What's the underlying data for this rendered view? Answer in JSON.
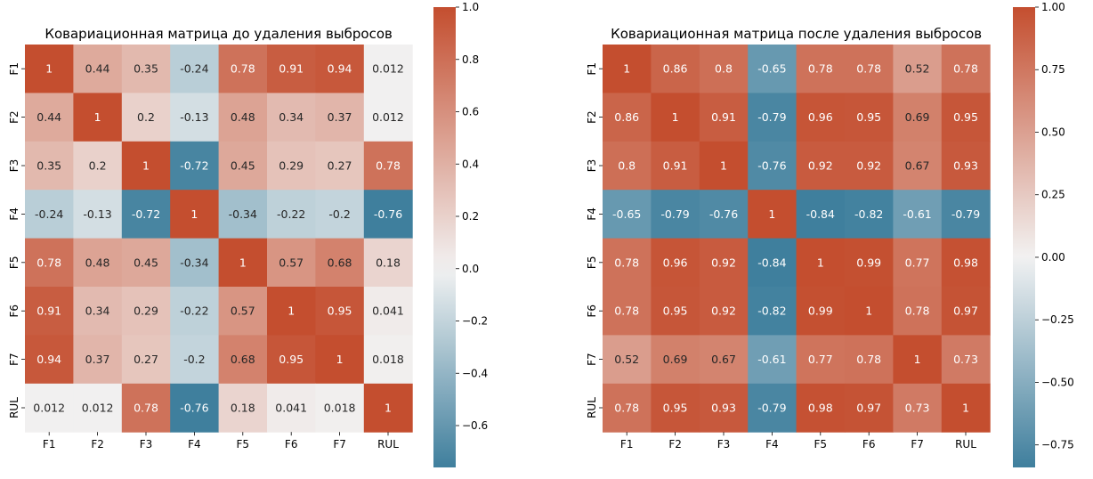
{
  "chart_data": [
    {
      "type": "heatmap",
      "title": "Ковариационная матрица до удаления выбросов",
      "row_labels": [
        "F1",
        "F2",
        "F3",
        "F4",
        "F5",
        "F6",
        "F7",
        "RUL"
      ],
      "col_labels": [
        "F1",
        "F2",
        "F3",
        "F4",
        "F5",
        "F6",
        "F7",
        "RUL"
      ],
      "values": [
        [
          1,
          0.44,
          0.35,
          -0.24,
          0.78,
          0.91,
          0.94,
          0.012
        ],
        [
          0.44,
          1,
          0.2,
          -0.13,
          0.48,
          0.34,
          0.37,
          0.012
        ],
        [
          0.35,
          0.2,
          1,
          -0.72,
          0.45,
          0.29,
          0.27,
          0.78
        ],
        [
          -0.24,
          -0.13,
          -0.72,
          1,
          -0.34,
          -0.22,
          -0.2,
          -0.76
        ],
        [
          0.78,
          0.48,
          0.45,
          -0.34,
          1,
          0.57,
          0.68,
          0.18
        ],
        [
          0.91,
          0.34,
          0.29,
          -0.22,
          0.57,
          1,
          0.95,
          0.041
        ],
        [
          0.94,
          0.37,
          0.27,
          -0.2,
          0.68,
          0.95,
          1,
          0.018
        ],
        [
          0.012,
          0.012,
          0.78,
          -0.76,
          0.18,
          0.041,
          0.018,
          1
        ]
      ],
      "cell_labels": [
        [
          "1",
          "0.44",
          "0.35",
          "-0.24",
          "0.78",
          "0.91",
          "0.94",
          "0.012"
        ],
        [
          "0.44",
          "1",
          "0.2",
          "-0.13",
          "0.48",
          "0.34",
          "0.37",
          "0.012"
        ],
        [
          "0.35",
          "0.2",
          "1",
          "-0.72",
          "0.45",
          "0.29",
          "0.27",
          "0.78"
        ],
        [
          "-0.24",
          "-0.13",
          "-0.72",
          "1",
          "-0.34",
          "-0.22",
          "-0.2",
          "-0.76"
        ],
        [
          "0.78",
          "0.48",
          "0.45",
          "-0.34",
          "1",
          "0.57",
          "0.68",
          "0.18"
        ],
        [
          "0.91",
          "0.34",
          "0.29",
          "-0.22",
          "0.57",
          "1",
          "0.95",
          "0.041"
        ],
        [
          "0.94",
          "0.37",
          "0.27",
          "-0.2",
          "0.68",
          "0.95",
          "1",
          "0.018"
        ],
        [
          "0.012",
          "0.012",
          "0.78",
          "-0.76",
          "0.18",
          "0.041",
          "0.018",
          "1"
        ]
      ],
      "colorbar": {
        "range": [
          -0.76,
          1.0
        ],
        "ticks": [
          1.0,
          0.8,
          0.6,
          0.4,
          0.2,
          0.0,
          -0.2,
          -0.4,
          -0.6
        ],
        "tick_labels": [
          "1.0",
          "0.8",
          "0.6",
          "0.4",
          "0.2",
          "0.0",
          "−0.2",
          "−0.4",
          "−0.6"
        ]
      }
    },
    {
      "type": "heatmap",
      "title": "Ковариационная матрица после удаления выбросов",
      "row_labels": [
        "F1",
        "F2",
        "F3",
        "F4",
        "F5",
        "F6",
        "F7",
        "RUL"
      ],
      "col_labels": [
        "F1",
        "F2",
        "F3",
        "F4",
        "F5",
        "F6",
        "F7",
        "RUL"
      ],
      "values": [
        [
          1,
          0.86,
          0.8,
          -0.65,
          0.78,
          0.78,
          0.52,
          0.78
        ],
        [
          0.86,
          1,
          0.91,
          -0.79,
          0.96,
          0.95,
          0.69,
          0.95
        ],
        [
          0.8,
          0.91,
          1,
          -0.76,
          0.92,
          0.92,
          0.67,
          0.93
        ],
        [
          -0.65,
          -0.79,
          -0.76,
          1,
          -0.84,
          -0.82,
          -0.61,
          -0.79
        ],
        [
          0.78,
          0.96,
          0.92,
          -0.84,
          1,
          0.99,
          0.77,
          0.98
        ],
        [
          0.78,
          0.95,
          0.92,
          -0.82,
          0.99,
          1,
          0.78,
          0.97
        ],
        [
          0.52,
          0.69,
          0.67,
          -0.61,
          0.77,
          0.78,
          1,
          0.73
        ],
        [
          0.78,
          0.95,
          0.93,
          -0.79,
          0.98,
          0.97,
          0.73,
          1
        ]
      ],
      "cell_labels": [
        [
          "1",
          "0.86",
          "0.8",
          "-0.65",
          "0.78",
          "0.78",
          "0.52",
          "0.78"
        ],
        [
          "0.86",
          "1",
          "0.91",
          "-0.79",
          "0.96",
          "0.95",
          "0.69",
          "0.95"
        ],
        [
          "0.8",
          "0.91",
          "1",
          "-0.76",
          "0.92",
          "0.92",
          "0.67",
          "0.93"
        ],
        [
          "-0.65",
          "-0.79",
          "-0.76",
          "1",
          "-0.84",
          "-0.82",
          "-0.61",
          "-0.79"
        ],
        [
          "0.78",
          "0.96",
          "0.92",
          "-0.84",
          "1",
          "0.99",
          "0.77",
          "0.98"
        ],
        [
          "0.78",
          "0.95",
          "0.92",
          "-0.82",
          "0.99",
          "1",
          "0.78",
          "0.97"
        ],
        [
          "0.52",
          "0.69",
          "0.67",
          "-0.61",
          "0.77",
          "0.78",
          "1",
          "0.73"
        ],
        [
          "0.78",
          "0.95",
          "0.93",
          "-0.79",
          "0.98",
          "0.97",
          "0.73",
          "1"
        ]
      ],
      "colorbar": {
        "range": [
          -0.84,
          1.0
        ],
        "ticks": [
          1.0,
          0.75,
          0.5,
          0.25,
          0.0,
          -0.25,
          -0.5,
          -0.75
        ],
        "tick_labels": [
          "1.00",
          "0.75",
          "0.50",
          "0.25",
          "0.00",
          "−0.25",
          "−0.50",
          "−0.75"
        ]
      }
    }
  ],
  "colors": {
    "negative": "#3f7f9d",
    "center": "#f2f2f2",
    "positive": "#c44e2f"
  }
}
